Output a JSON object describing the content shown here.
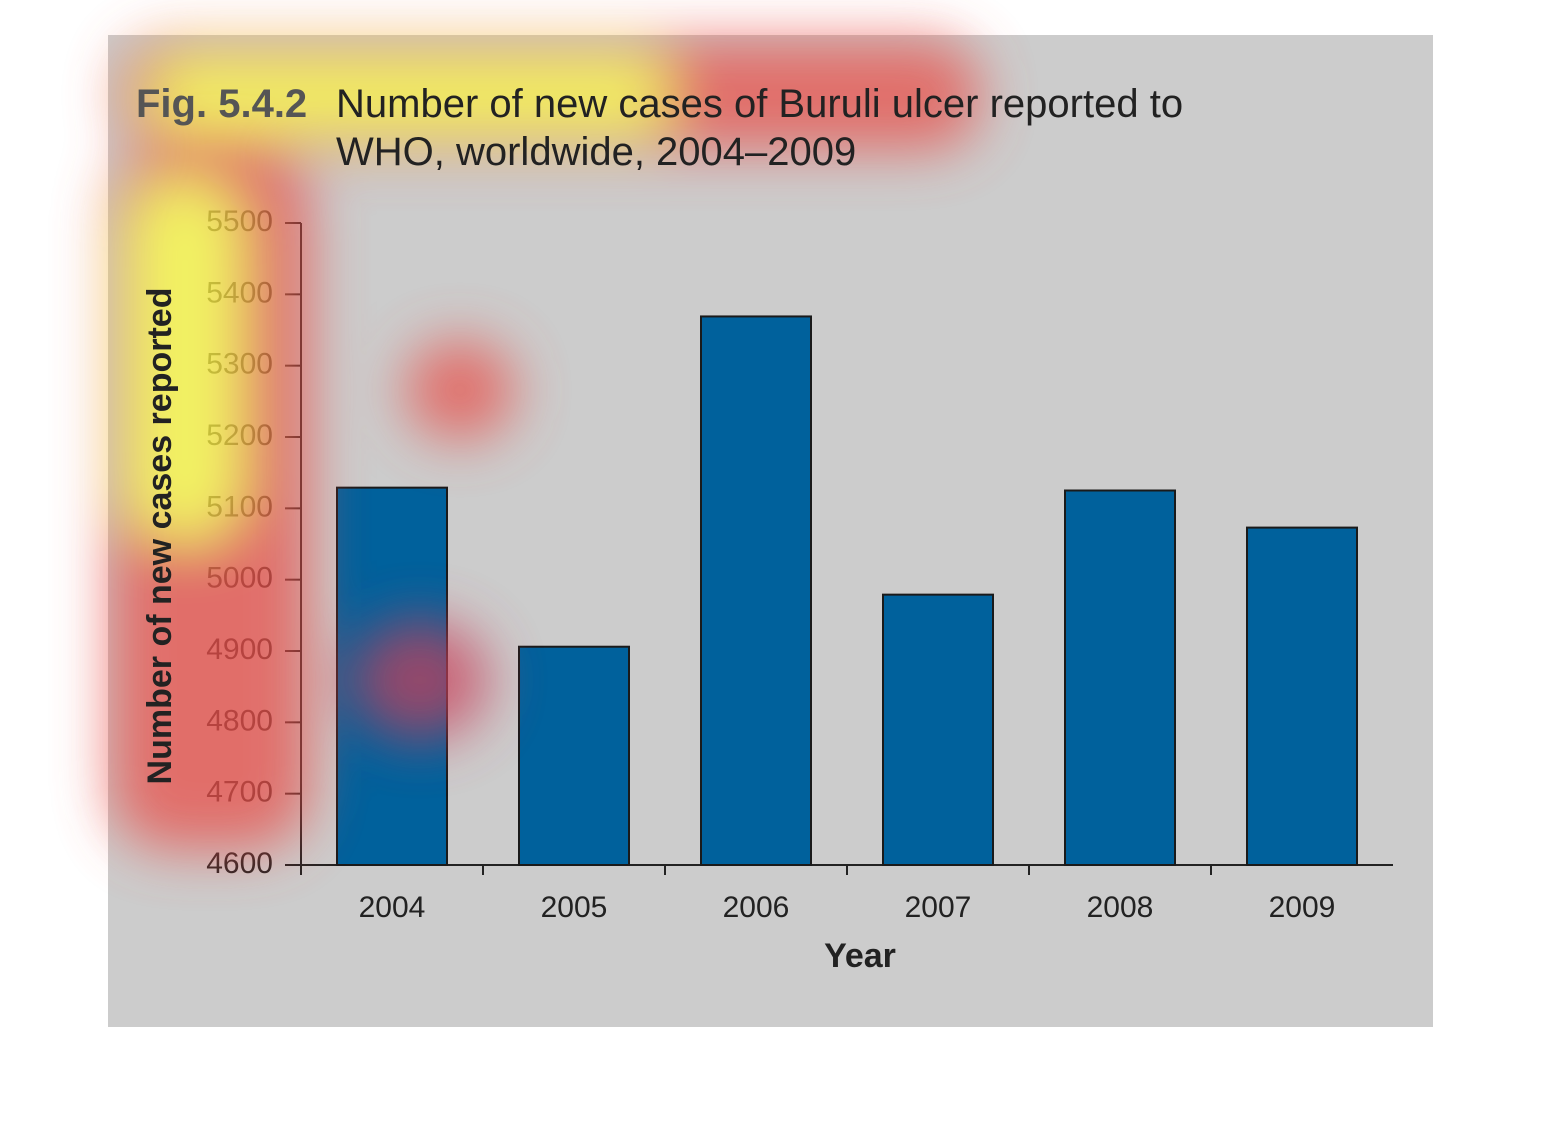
{
  "chart_data": {
    "type": "bar",
    "figure_label": "Fig. 5.4.2",
    "title": "Number of new cases of Buruli ulcer reported to WHO, worldwide, 2004–2009",
    "x_label": "Year",
    "y_label": "Number of new cases reported",
    "categories": [
      "2004",
      "2005",
      "2006",
      "2007",
      "2008",
      "2009"
    ],
    "values": [
      5129,
      4906,
      5369,
      4979,
      5125,
      5073
    ],
    "color": "#00619c",
    "ylim": [
      4600,
      5500
    ],
    "yticks": [
      4600,
      4700,
      4800,
      4900,
      5000,
      5100,
      5200,
      5300,
      5400,
      5500
    ]
  }
}
